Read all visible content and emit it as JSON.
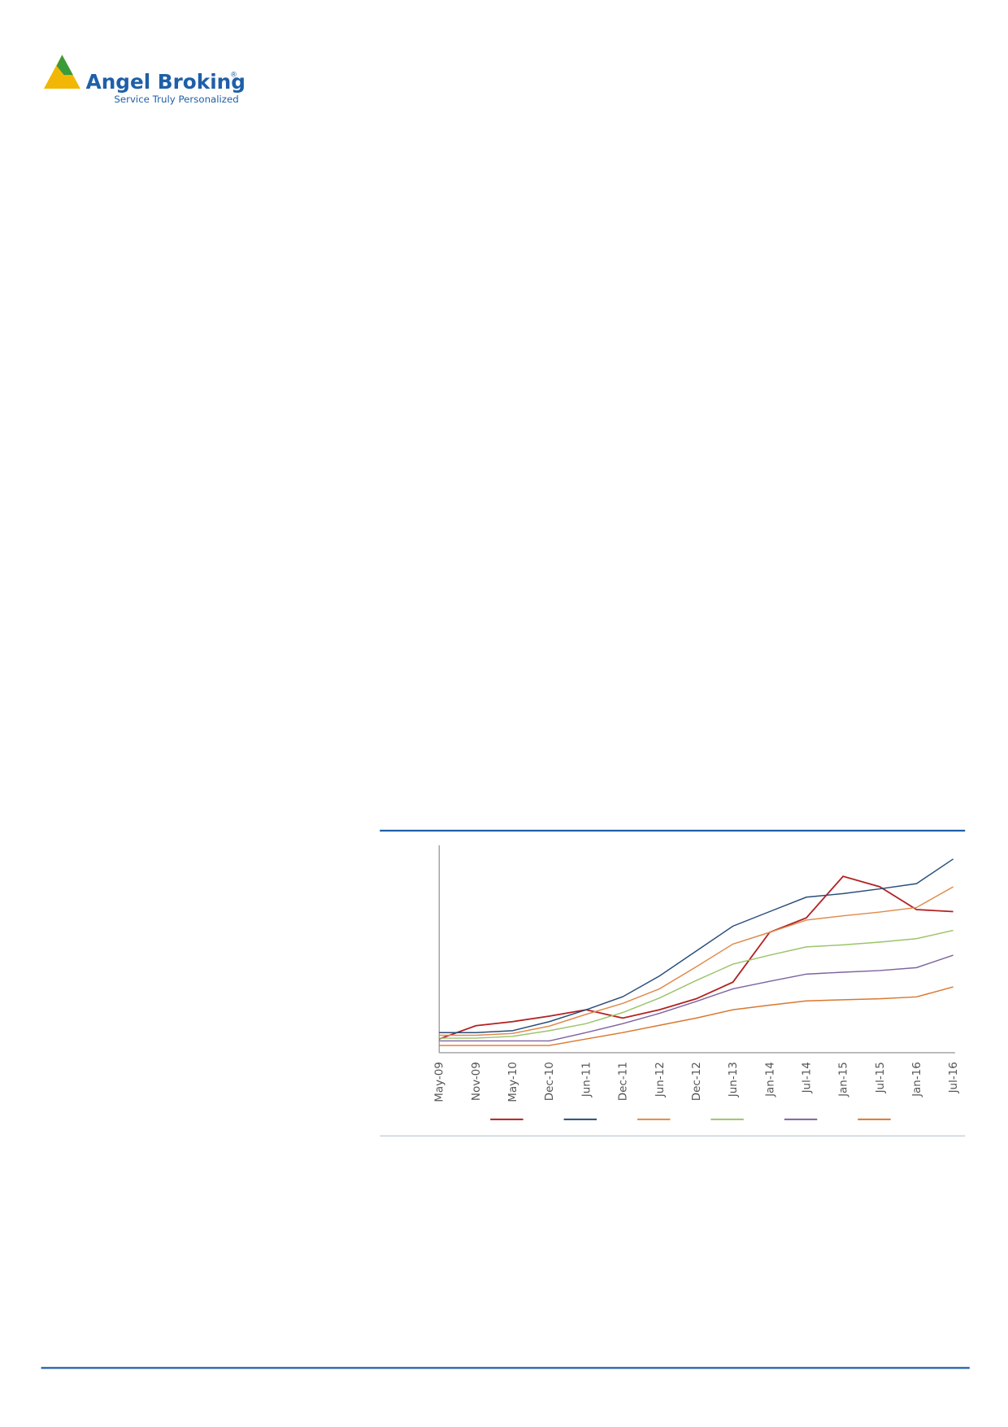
{
  "header": {
    "brand": "Angel Broking",
    "registered": "®",
    "tagline": "Service Truly Personalized"
  },
  "chart_data": {
    "type": "line",
    "categories": [
      "May-09",
      "Nov-09",
      "May-10",
      "Dec-10",
      "Jun-11",
      "Dec-11",
      "Jun-12",
      "Dec-12",
      "Jun-13",
      "Jan-14",
      "Jul-14",
      "Jan-15",
      "Jul-15",
      "Jan-16",
      "Jul-16"
    ],
    "ylim": [
      0,
      100
    ],
    "series": [
      {
        "color": "#b22222",
        "values": [
          6.6,
          13,
          15,
          17.6,
          20.7,
          16.7,
          20.7,
          26,
          34,
          58,
          65,
          85,
          80,
          69,
          68
        ]
      },
      {
        "color": "#2a4d7a",
        "values": [
          9.7,
          9.7,
          10.6,
          15,
          20.7,
          27,
          37,
          49,
          61,
          68,
          75,
          76.7,
          79,
          81.5,
          93.4
        ]
      },
      {
        "color": "#e08a4a",
        "values": [
          8.4,
          8.4,
          9.3,
          12.8,
          18.5,
          23.8,
          30.8,
          41.4,
          52.4,
          58,
          63.9,
          66,
          67.8,
          70,
          80
        ]
      },
      {
        "color": "#9bc46a",
        "values": [
          7,
          7,
          7.9,
          10.6,
          14,
          19.4,
          26.4,
          34.8,
          42.7,
          47,
          51,
          52,
          53.3,
          55,
          59
        ]
      },
      {
        "color": "#7e63a0",
        "values": [
          5.7,
          5.7,
          5.7,
          5.7,
          9.7,
          14,
          19,
          24.7,
          30.8,
          34.4,
          37.9,
          38.8,
          39.6,
          41,
          47
        ]
      },
      {
        "color": "#d9782f",
        "values": [
          3.5,
          3.5,
          3.5,
          3.5,
          6.6,
          9.7,
          13.2,
          16.7,
          20.7,
          22.9,
          25,
          25.5,
          26,
          26.9,
          31.7
        ]
      }
    ]
  }
}
